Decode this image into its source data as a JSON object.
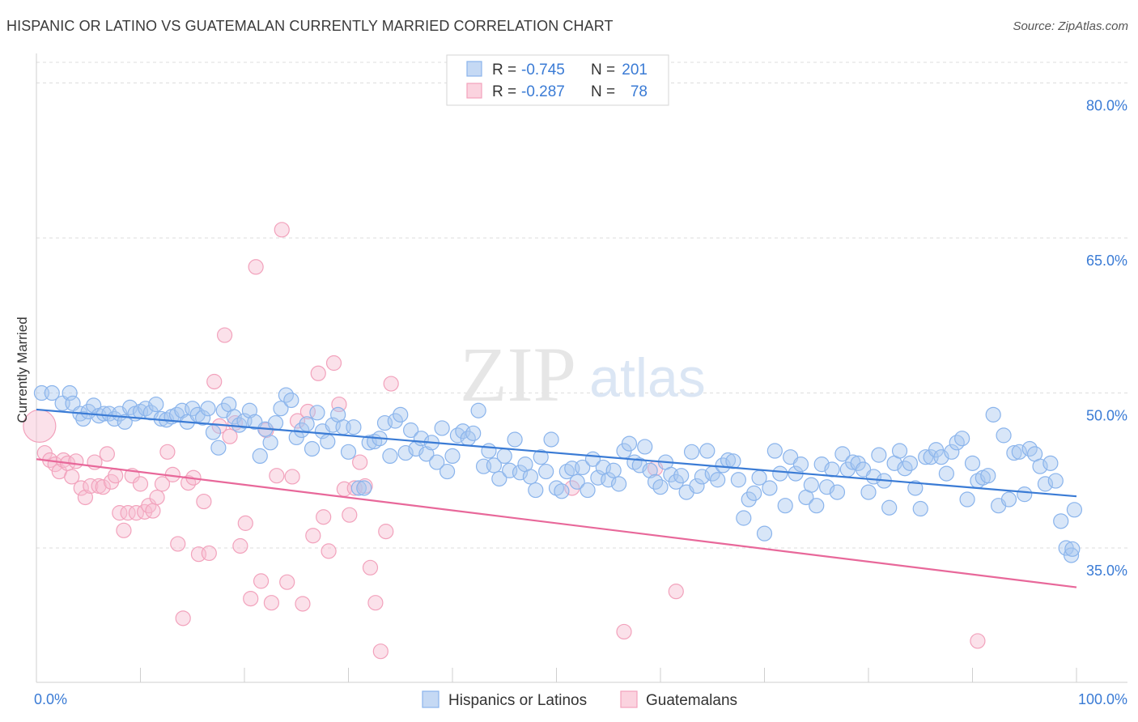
{
  "title": "HISPANIC OR LATINO VS GUATEMALAN CURRENTLY MARRIED CORRELATION CHART",
  "source": "Source: ZipAtlas.com",
  "watermark": {
    "zip": "ZIP",
    "atlas": "atlas"
  },
  "legend_box": {
    "rows": [
      {
        "r_label": "R = ",
        "r_value": "-0.745",
        "n_label": "N = ",
        "n_value": "201",
        "color": "#8ab4ec"
      },
      {
        "r_label": "R = ",
        "r_value": "-0.287",
        "n_label": "N = ",
        "n_value": "78",
        "color": "#f2a2bc"
      }
    ]
  },
  "bottom_legend": [
    {
      "label": "Hispanics or Latinos",
      "color": "#8ab4ec"
    },
    {
      "label": "Guatemalans",
      "color": "#f2a2bc"
    }
  ],
  "colors": {
    "blue": "#3a7bd5",
    "blue_fill": "#a8c8f0",
    "pink": "#e8689a",
    "pink_fill": "#f7bdd0",
    "tick_blue": "#3a7bd5"
  },
  "chart_data": {
    "type": "scatter",
    "title": "HISPANIC OR LATINO VS GUATEMALAN CURRENTLY MARRIED CORRELATION CHART",
    "xlabel": "",
    "ylabel": "Currently Married",
    "xlim": [
      0,
      100
    ],
    "ylim": [
      22,
      82
    ],
    "x_tick_labels": [
      {
        "value": 0,
        "label": "0.0%"
      },
      {
        "value": 100,
        "label": "100.0%"
      }
    ],
    "y_ticks": [
      {
        "value": 35,
        "label": "35.0%"
      },
      {
        "value": 50,
        "label": "50.0%"
      },
      {
        "value": 65,
        "label": "65.0%"
      },
      {
        "value": 80,
        "label": "80.0%"
      }
    ],
    "grid": true,
    "series": [
      {
        "name": "Hispanics or Latinos",
        "r": -0.745,
        "n": 201,
        "trend": {
          "x": [
            0,
            100
          ],
          "y": [
            48.4,
            40.0
          ]
        },
        "points": [
          [
            0.5,
            50
          ],
          [
            1.5,
            50
          ],
          [
            2.5,
            49
          ],
          [
            3.2,
            50
          ],
          [
            3.5,
            49
          ],
          [
            4.2,
            48
          ],
          [
            4.5,
            47.5
          ],
          [
            5,
            48.2
          ],
          [
            5.5,
            48.8
          ],
          [
            6,
            47.8
          ],
          [
            6.5,
            48
          ],
          [
            7,
            48
          ],
          [
            7.5,
            47.5
          ],
          [
            8,
            48
          ],
          [
            8.5,
            47.2
          ],
          [
            9,
            48.6
          ],
          [
            9.5,
            48
          ],
          [
            10,
            48.2
          ],
          [
            10.5,
            48.5
          ],
          [
            11,
            48.1
          ],
          [
            11.5,
            48.9
          ],
          [
            12,
            47.5
          ],
          [
            12.5,
            47.4
          ],
          [
            13,
            47.7
          ],
          [
            13.5,
            47.9
          ],
          [
            14,
            48.3
          ],
          [
            14.5,
            47.2
          ],
          [
            15,
            48.5
          ],
          [
            15.5,
            47.9
          ],
          [
            16,
            47.6
          ],
          [
            16.5,
            48.5
          ],
          [
            17,
            46.2
          ],
          [
            17.5,
            44.7
          ],
          [
            18,
            48.3
          ],
          [
            18.5,
            48.9
          ],
          [
            19,
            47.7
          ],
          [
            19.5,
            46.9
          ],
          [
            20,
            47.3
          ],
          [
            20.5,
            48.3
          ],
          [
            21,
            47.2
          ],
          [
            21.5,
            43.9
          ],
          [
            22,
            46.5
          ],
          [
            22.5,
            45.2
          ],
          [
            23,
            47.1
          ],
          [
            23.5,
            48.5
          ],
          [
            24,
            49.8
          ],
          [
            24.5,
            49.3
          ],
          [
            25,
            45.7
          ],
          [
            25.5,
            46.4
          ],
          [
            26,
            47
          ],
          [
            26.5,
            44.6
          ],
          [
            27,
            48.1
          ],
          [
            27.5,
            46.3
          ],
          [
            28,
            45.3
          ],
          [
            28.5,
            46.9
          ],
          [
            29,
            47.9
          ],
          [
            29.5,
            46.7
          ],
          [
            30,
            44.3
          ],
          [
            30.5,
            46.7
          ],
          [
            31,
            40.8
          ],
          [
            31.5,
            40.8
          ],
          [
            32,
            45.2
          ],
          [
            32.5,
            45.3
          ],
          [
            33,
            45.6
          ],
          [
            33.5,
            47.1
          ],
          [
            34,
            43.9
          ],
          [
            34.5,
            47.3
          ],
          [
            35,
            47.9
          ],
          [
            35.5,
            44.2
          ],
          [
            36,
            46.4
          ],
          [
            36.5,
            44.6
          ],
          [
            37,
            45.6
          ],
          [
            37.5,
            44.1
          ],
          [
            38,
            45.2
          ],
          [
            38.5,
            43.3
          ],
          [
            39,
            46.6
          ],
          [
            39.5,
            42.4
          ],
          [
            40,
            43.9
          ],
          [
            40.5,
            45.9
          ],
          [
            41,
            46.3
          ],
          [
            41.5,
            45.6
          ],
          [
            42,
            46.1
          ],
          [
            42.5,
            48.3
          ],
          [
            43,
            42.9
          ],
          [
            43.5,
            44.4
          ],
          [
            44,
            43
          ],
          [
            44.5,
            41.7
          ],
          [
            45,
            43.9
          ],
          [
            45.5,
            42.5
          ],
          [
            46,
            45.5
          ],
          [
            46.5,
            42.3
          ],
          [
            47,
            43.1
          ],
          [
            47.5,
            41.9
          ],
          [
            48,
            40.6
          ],
          [
            48.5,
            43.8
          ],
          [
            49,
            42.4
          ],
          [
            49.5,
            45.5
          ],
          [
            50,
            40.8
          ],
          [
            50.5,
            40.5
          ],
          [
            51,
            42.4
          ],
          [
            51.5,
            42.7
          ],
          [
            52,
            41.4
          ],
          [
            52.5,
            42.8
          ],
          [
            53,
            40.6
          ],
          [
            53.5,
            43.6
          ],
          [
            54,
            41.8
          ],
          [
            54.5,
            42.8
          ],
          [
            55,
            41.6
          ],
          [
            55.5,
            42.5
          ],
          [
            56,
            41.2
          ],
          [
            56.5,
            44.4
          ],
          [
            57,
            45.1
          ],
          [
            57.5,
            43.3
          ],
          [
            58,
            43
          ],
          [
            58.5,
            44.8
          ],
          [
            59,
            42.5
          ],
          [
            59.5,
            41.4
          ],
          [
            60,
            40.9
          ],
          [
            60.5,
            43.3
          ],
          [
            61,
            42.1
          ],
          [
            61.5,
            41.4
          ],
          [
            62,
            42
          ],
          [
            62.5,
            40.4
          ],
          [
            63,
            44.3
          ],
          [
            63.5,
            41
          ],
          [
            64,
            41.9
          ],
          [
            64.5,
            44.4
          ],
          [
            65,
            42.2
          ],
          [
            65.5,
            41.6
          ],
          [
            66,
            43
          ],
          [
            66.5,
            43.5
          ],
          [
            67,
            43.4
          ],
          [
            67.5,
            41.6
          ],
          [
            68,
            37.9
          ],
          [
            68.5,
            39.7
          ],
          [
            69,
            40.3
          ],
          [
            69.5,
            41.8
          ],
          [
            70,
            36.4
          ],
          [
            70.5,
            40.8
          ],
          [
            71,
            44.4
          ],
          [
            71.5,
            42.2
          ],
          [
            72,
            39.1
          ],
          [
            72.5,
            43.8
          ],
          [
            73,
            42.2
          ],
          [
            73.5,
            43.1
          ],
          [
            74,
            39.9
          ],
          [
            74.5,
            41.1
          ],
          [
            75,
            39.1
          ],
          [
            75.5,
            43.1
          ],
          [
            76,
            40.9
          ],
          [
            76.5,
            42.6
          ],
          [
            77,
            40.4
          ],
          [
            77.5,
            44.1
          ],
          [
            78,
            42.6
          ],
          [
            78.5,
            43.3
          ],
          [
            79,
            43.2
          ],
          [
            79.5,
            42.6
          ],
          [
            80,
            40.4
          ],
          [
            80.5,
            41.9
          ],
          [
            81,
            44.0
          ],
          [
            81.5,
            41.5
          ],
          [
            82,
            38.9
          ],
          [
            82.5,
            43.2
          ],
          [
            83,
            44.4
          ],
          [
            83.5,
            42.7
          ],
          [
            84,
            43.2
          ],
          [
            84.5,
            40.8
          ],
          [
            85,
            38.8
          ],
          [
            85.5,
            43.8
          ],
          [
            86,
            43.8
          ],
          [
            86.5,
            44.5
          ],
          [
            87,
            43.8
          ],
          [
            87.5,
            42.2
          ],
          [
            88,
            44.3
          ],
          [
            88.5,
            45.2
          ],
          [
            89,
            45.6
          ],
          [
            89.5,
            39.7
          ],
          [
            90,
            43.2
          ],
          [
            90.5,
            41.5
          ],
          [
            91,
            41.8
          ],
          [
            91.5,
            42
          ],
          [
            92,
            47.9
          ],
          [
            92.5,
            39.1
          ],
          [
            93,
            45.9
          ],
          [
            93.5,
            39.7
          ],
          [
            94,
            44.2
          ],
          [
            94.5,
            44.3
          ],
          [
            95,
            40.2
          ],
          [
            95.5,
            44.6
          ],
          [
            96,
            44.1
          ],
          [
            96.5,
            42.9
          ],
          [
            97,
            41.2
          ],
          [
            97.5,
            43.2
          ],
          [
            98,
            41.5
          ],
          [
            98.5,
            37.6
          ],
          [
            99,
            35
          ],
          [
            99.5,
            34.3
          ],
          [
            99.8,
            38.7
          ],
          [
            99.6,
            34.9
          ]
        ]
      },
      {
        "name": "Guatemalans",
        "r": -0.287,
        "n": 78,
        "trend": {
          "x": [
            0,
            100
          ],
          "y": [
            43.6,
            31.2
          ]
        },
        "points": [
          [
            0.3,
            46.8
          ],
          [
            0.8,
            44.2
          ],
          [
            1.3,
            43.5
          ],
          [
            1.8,
            43.1
          ],
          [
            2.2,
            42.4
          ],
          [
            2.6,
            43.5
          ],
          [
            3,
            43.2
          ],
          [
            3.4,
            41.9
          ],
          [
            3.8,
            43.4
          ],
          [
            4.3,
            40.8
          ],
          [
            4.7,
            39.9
          ],
          [
            5.2,
            41
          ],
          [
            5.6,
            43.3
          ],
          [
            6,
            41
          ],
          [
            6.4,
            40.9
          ],
          [
            6.8,
            44.1
          ],
          [
            7.2,
            41.4
          ],
          [
            7.6,
            42
          ],
          [
            8,
            38.4
          ],
          [
            8.4,
            36.7
          ],
          [
            8.8,
            38.4
          ],
          [
            9.2,
            42
          ],
          [
            9.6,
            38.4
          ],
          [
            10,
            41.2
          ],
          [
            10.4,
            38.5
          ],
          [
            10.8,
            39.1
          ],
          [
            11.2,
            38.6
          ],
          [
            11.6,
            39.9
          ],
          [
            12.1,
            41.2
          ],
          [
            12.6,
            44.3
          ],
          [
            13.1,
            42.1
          ],
          [
            13.6,
            35.4
          ],
          [
            14.1,
            28.2
          ],
          [
            14.6,
            41.3
          ],
          [
            15.1,
            41.8
          ],
          [
            15.6,
            34.4
          ],
          [
            16.1,
            39.5
          ],
          [
            16.6,
            34.5
          ],
          [
            17.1,
            51.1
          ],
          [
            17.6,
            46.8
          ],
          [
            18.1,
            55.6
          ],
          [
            18.6,
            45.8
          ],
          [
            19.1,
            47.1
          ],
          [
            19.6,
            35.2
          ],
          [
            20.1,
            37.4
          ],
          [
            20.6,
            30.1
          ],
          [
            21.1,
            62.2
          ],
          [
            21.6,
            31.8
          ],
          [
            22.1,
            46.4
          ],
          [
            22.6,
            29.7
          ],
          [
            23.1,
            42
          ],
          [
            23.6,
            65.8
          ],
          [
            24.1,
            31.7
          ],
          [
            24.6,
            41.9
          ],
          [
            25.1,
            47.3
          ],
          [
            25.6,
            29.6
          ],
          [
            26.1,
            48.2
          ],
          [
            26.6,
            36.2
          ],
          [
            27.1,
            51.9
          ],
          [
            27.6,
            38
          ],
          [
            28.1,
            34.7
          ],
          [
            28.6,
            52.9
          ],
          [
            29.1,
            48.9
          ],
          [
            29.6,
            40.7
          ],
          [
            30.1,
            38.2
          ],
          [
            30.6,
            40.8
          ],
          [
            31.1,
            43.3
          ],
          [
            31.6,
            41
          ],
          [
            32.1,
            33.1
          ],
          [
            32.6,
            29.7
          ],
          [
            33.1,
            25
          ],
          [
            33.6,
            36.6
          ],
          [
            34.1,
            50.9
          ],
          [
            51.5,
            40.8
          ],
          [
            56.5,
            26.9
          ],
          [
            59.5,
            42.7
          ],
          [
            61.5,
            30.8
          ],
          [
            90.5,
            26
          ]
        ]
      }
    ]
  }
}
